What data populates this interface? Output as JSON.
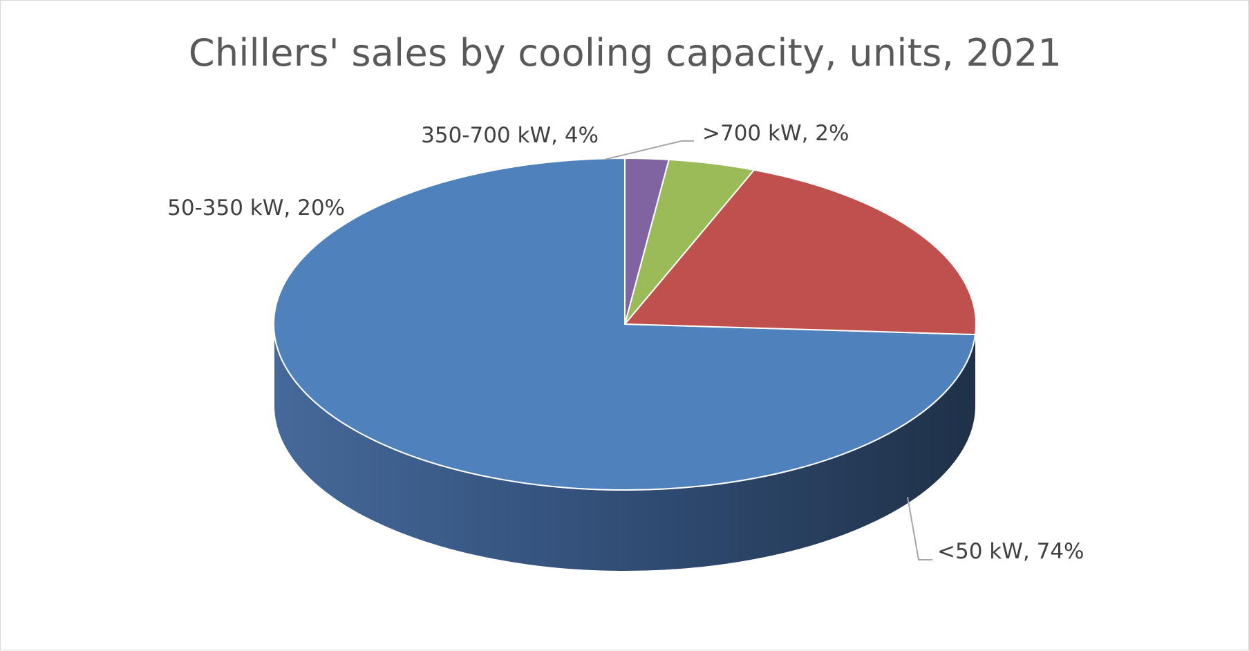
{
  "chart_data": {
    "type": "pie",
    "title": "Chillers' sales by cooling capacity, units, 2021",
    "categories": [
      "<50 kW",
      "50-350 kW",
      "350-700 kW",
      ">700 kW"
    ],
    "values": [
      74,
      20,
      4,
      2
    ],
    "unit": "%",
    "labels": [
      "<50 kW, 74%",
      "50-350 kW, 20%",
      "350-700 kW, 4%",
      ">700 kW, 2%"
    ],
    "colors": [
      "#4f81bd",
      "#c0504d",
      "#9bbb59",
      "#8064a2"
    ],
    "legend": "none",
    "style": "3d"
  }
}
